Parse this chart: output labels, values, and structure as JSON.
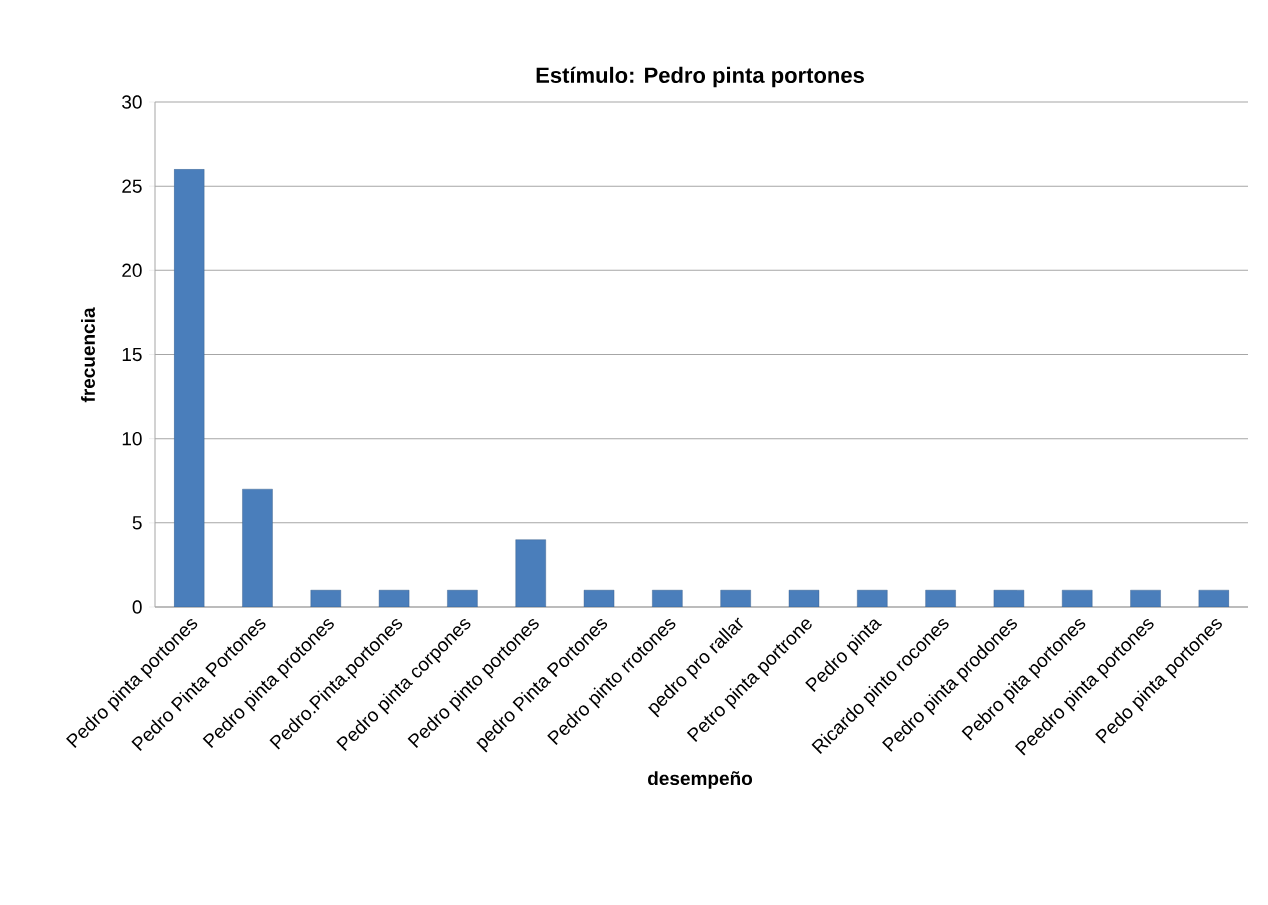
{
  "chart_data": {
    "type": "bar",
    "title": "Estímulo: Pedro pinta portones",
    "xlabel": "desempeño",
    "ylabel": "frecuencia",
    "categories": [
      "Pedro pinta portones",
      "Pedro Pinta Portones",
      "Pedro pinta protones",
      "Pedro.Pinta.portones",
      "Pedro pinta corpones",
      "Pedro pinto portones",
      "pedro Pinta Portones",
      "Pedro pinto rrotones",
      "pedro pro rallar",
      "Petro pinta portrone",
      "Pedro pinta",
      "Ricardo pinto rocones",
      "Pedro pinta prodones",
      "Pebro pita portones",
      "Peedro pinta portones",
      "Pedo pinta portones"
    ],
    "values": [
      26,
      7,
      1,
      1,
      1,
      4,
      1,
      1,
      1,
      1,
      1,
      1,
      1,
      1,
      1,
      1
    ],
    "color": "#4a7ebb",
    "ylim": [
      0,
      30
    ],
    "yticks": [
      0,
      5,
      10,
      15,
      20,
      25,
      30
    ],
    "grid": "y"
  }
}
